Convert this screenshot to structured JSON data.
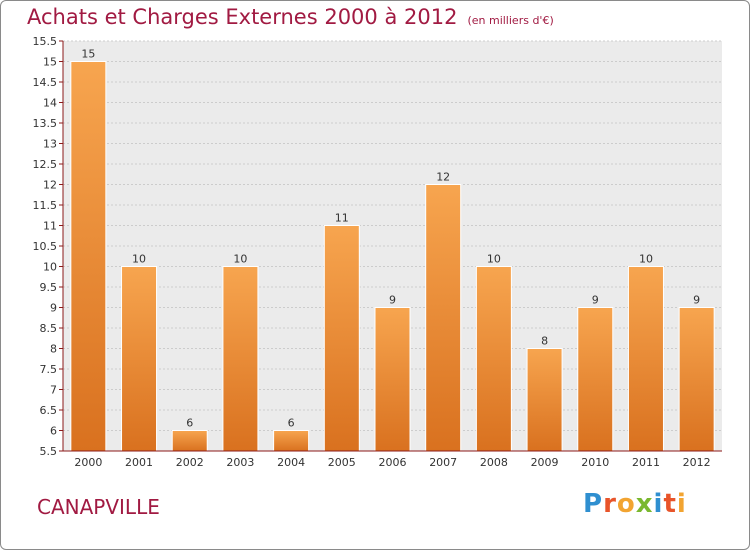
{
  "title": "Achats et Charges Externes 2000 à 2012",
  "subtitle": "(en milliers d'€)",
  "town": "CANAPVILLE",
  "logo": {
    "text": "Proxiti",
    "letters": [
      {
        "char": "P",
        "color": "#2f8fd0"
      },
      {
        "char": "r",
        "color": "#e8542a"
      },
      {
        "char": "o",
        "color": "#f2a431"
      },
      {
        "char": "x",
        "color": "#7ab82f"
      },
      {
        "char": "i",
        "color": "#2f8fd0"
      },
      {
        "char": "t",
        "color": "#e8542a"
      },
      {
        "char": "i",
        "color": "#f2a431"
      }
    ]
  },
  "colors": {
    "title": "#a11a42",
    "bar_light": "#f7a54f",
    "bar_dark": "#d9711f",
    "axis": "#8b1a1a",
    "grid": "#cccccc",
    "plot_bg": "#ebebeb"
  },
  "chart_data": {
    "type": "bar",
    "categories": [
      "2000",
      "2001",
      "2002",
      "2003",
      "2004",
      "2005",
      "2006",
      "2007",
      "2008",
      "2009",
      "2010",
      "2011",
      "2012"
    ],
    "values": [
      15,
      10,
      6,
      10,
      6,
      11,
      9,
      12,
      10,
      8,
      9,
      10,
      9
    ],
    "value_labels": [
      "15",
      "10",
      "6",
      "10",
      "6",
      "11",
      "9",
      "12",
      "10",
      "8",
      "9",
      "10",
      "9"
    ],
    "yticks": [
      "5.5",
      "6",
      "6.5",
      "7",
      "7.5",
      "8",
      "8.5",
      "9",
      "9.5",
      "10",
      "10.5",
      "11",
      "11.5",
      "12",
      "12.5",
      "13",
      "13.5",
      "14",
      "14.5",
      "15",
      "15.5"
    ],
    "ylim": [
      5.5,
      15.5
    ],
    "grid": true
  }
}
